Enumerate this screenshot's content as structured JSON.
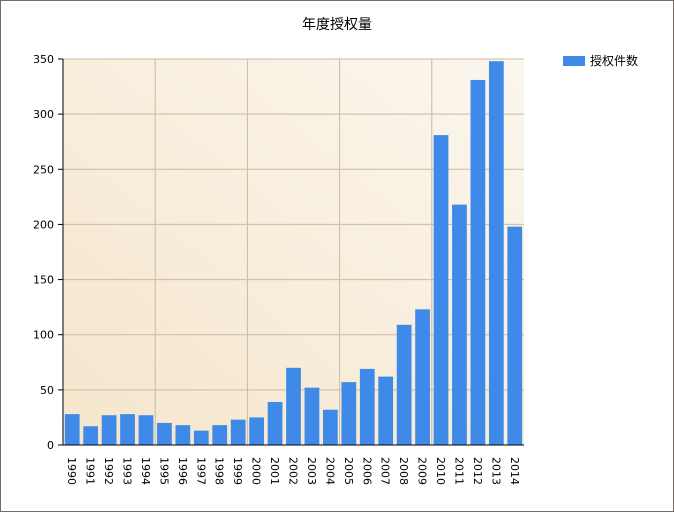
{
  "chart_data": {
    "type": "bar",
    "title": "年度授权量",
    "xlabel": "",
    "ylabel": "",
    "categories": [
      "1990",
      "1991",
      "1992",
      "1993",
      "1994",
      "1995",
      "1996",
      "1997",
      "1998",
      "1999",
      "2000",
      "2001",
      "2002",
      "2003",
      "2004",
      "2005",
      "2006",
      "2007",
      "2008",
      "2009",
      "2010",
      "2011",
      "2012",
      "2013",
      "2014"
    ],
    "series": [
      {
        "name": "授权件数",
        "color": "#3f8ae8",
        "values": [
          28,
          17,
          27,
          28,
          27,
          20,
          18,
          13,
          18,
          23,
          25,
          39,
          70,
          52,
          32,
          57,
          69,
          62,
          109,
          123,
          281,
          218,
          331,
          348,
          198
        ]
      }
    ],
    "ylim": [
      0,
      350
    ],
    "yticks": [
      0,
      50,
      100,
      150,
      200,
      250,
      300,
      350
    ],
    "grid": true,
    "legend_position": "top-right"
  }
}
